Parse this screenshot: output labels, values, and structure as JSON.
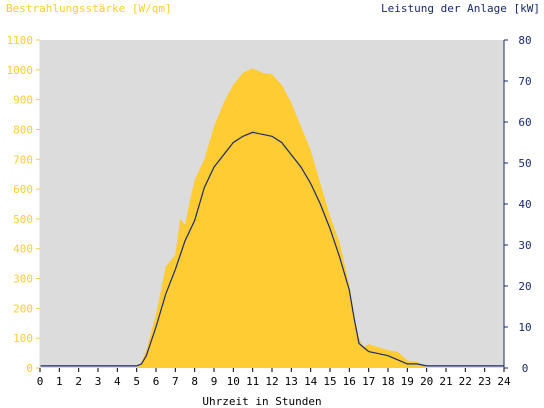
{
  "chart_data": {
    "type": "area",
    "ylabel_left": "Bestrahlungsstärke [W/qm]",
    "ylabel_right": "Leistung der Anlage [kW]",
    "xlabel": "Uhrzeit in Stunden",
    "xlim": [
      0,
      24
    ],
    "ylim_left": [
      0,
      1100
    ],
    "ylim_right": [
      0,
      80
    ],
    "x_ticks": [
      "0",
      "1",
      "2",
      "3",
      "4",
      "5",
      "6",
      "7",
      "8",
      "9",
      "10",
      "11",
      "12",
      "13",
      "14",
      "15",
      "16",
      "17",
      "18",
      "19",
      "20",
      "21",
      "22",
      "23",
      "24"
    ],
    "y_left_ticks": [
      "0",
      "100",
      "200",
      "300",
      "400",
      "500",
      "600",
      "700",
      "800",
      "900",
      "1000",
      "1100"
    ],
    "y_right_ticks": [
      "0",
      "10",
      "20",
      "30",
      "40",
      "50",
      "60",
      "70",
      "80"
    ],
    "grid": false,
    "background": "#dcdcdc",
    "colors": {
      "irradiance": "#ffcc33",
      "power": "#1a2a6c"
    },
    "series": [
      {
        "axis": "left",
        "style": "area",
        "x": [
          0,
          5,
          5.25,
          5.5,
          6,
          6.5,
          7,
          7.25,
          7.5,
          7.75,
          8,
          8.5,
          9,
          9.5,
          10,
          10.5,
          11,
          11.5,
          12,
          12.5,
          13,
          13.5,
          14,
          14.5,
          15,
          15.5,
          16,
          16.25,
          16.5,
          16.75,
          17,
          17.5,
          18,
          18.5,
          19,
          19.5,
          20,
          24
        ],
        "values": [
          0,
          0,
          20,
          60,
          180,
          340,
          380,
          500,
          480,
          560,
          630,
          700,
          810,
          890,
          950,
          990,
          1005,
          990,
          985,
          950,
          890,
          810,
          730,
          620,
          510,
          420,
          280,
          180,
          100,
          70,
          80,
          70,
          60,
          55,
          25,
          20,
          0,
          0
        ]
      },
      {
        "axis": "right",
        "style": "line",
        "x": [
          0,
          5,
          5.25,
          5.5,
          6,
          6.5,
          7,
          7.5,
          8,
          8.5,
          9,
          9.5,
          10,
          10.5,
          11,
          11.5,
          12,
          12.5,
          13,
          13.5,
          14,
          14.5,
          15,
          15.5,
          16,
          16.25,
          16.5,
          16.75,
          17,
          17.5,
          18,
          18.5,
          19,
          19.5,
          20,
          24
        ],
        "values": [
          0.5,
          0.5,
          1,
          3,
          10,
          18,
          24,
          31,
          36,
          44,
          49,
          52,
          55,
          56.5,
          57.5,
          57,
          56.5,
          55,
          52,
          49,
          45,
          40,
          34,
          27,
          19,
          12,
          6,
          5,
          4,
          3.5,
          3,
          2,
          1,
          1,
          0.5,
          0.5
        ]
      }
    ]
  }
}
